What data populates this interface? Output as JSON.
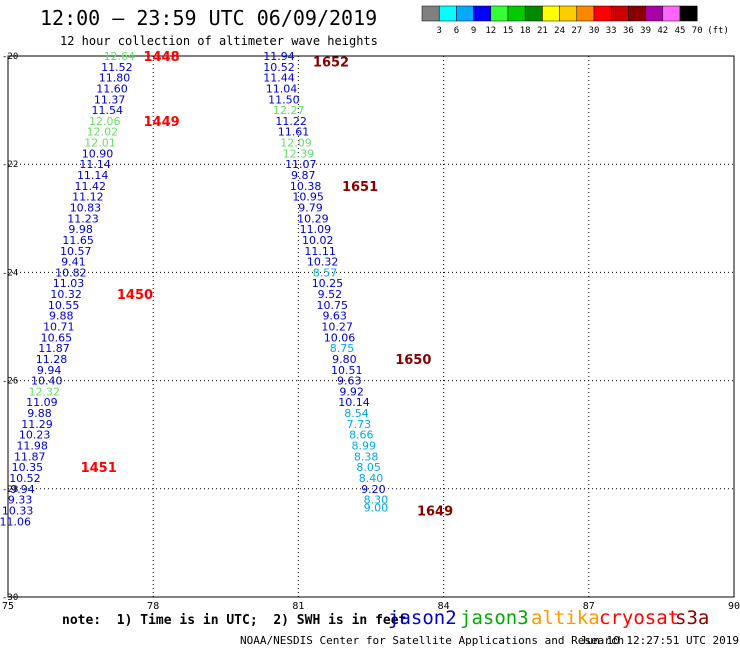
{
  "title": "12:00 – 23:59 UTC 06/09/2019",
  "subtitle": "12 hour collection of altimeter wave heights",
  "note": "note:  1) Time is in UTC;  2) SWH is in feet",
  "footer_left": "NOAA/NESDIS Center for Satellite Applications and Research",
  "footer_right": "Jun 10 12:27:51 UTC 2019",
  "satellites": [
    {
      "name": "jason2",
      "color": "#0000cc"
    },
    {
      "name": "jason3",
      "color": "#00aa00"
    },
    {
      "name": "altika",
      "color": "#ff9900"
    },
    {
      "name": "cryosat",
      "color": "#ff0000"
    },
    {
      "name": "s3a",
      "color": "#880000"
    }
  ],
  "colorbar": {
    "colors": [
      "#808080",
      "#00ffff",
      "#00aaff",
      "#0000ff",
      "#33ff33",
      "#00cc00",
      "#008800",
      "#ffff00",
      "#ffcc00",
      "#ff8800",
      "#ff0000",
      "#cc0000",
      "#880000",
      "#aa00aa",
      "#ff66ff",
      "#000000"
    ],
    "labels": [
      "3",
      "6",
      "9",
      "12",
      "15",
      "18",
      "21",
      "24",
      "27",
      "30",
      "33",
      "36",
      "39",
      "42",
      "45",
      "70"
    ],
    "unit": "(ft)"
  },
  "chart_data": {
    "type": "scatter",
    "xlim": [
      75,
      90
    ],
    "ylim": [
      -30,
      -20
    ],
    "xticks": [
      "75",
      "78",
      "81",
      "84",
      "87",
      "90"
    ],
    "yticks": [
      "-20",
      "-22",
      "-24",
      "-26",
      "-28",
      "-30"
    ],
    "grid": true,
    "series": [
      {
        "points": [
          {
            "x": 77.3,
            "y": -20.0,
            "label": "12.64",
            "color": "#66dd66"
          },
          {
            "x": 77.25,
            "y": -20.2,
            "label": "11.52",
            "color": "#0000cc"
          },
          {
            "x": 77.2,
            "y": -20.4,
            "label": "11.80",
            "color": "#0000cc"
          },
          {
            "x": 77.15,
            "y": -20.6,
            "label": "11.60",
            "color": "#0000cc"
          },
          {
            "x": 77.1,
            "y": -20.8,
            "label": "11.37",
            "color": "#0000cc"
          },
          {
            "x": 77.05,
            "y": -21.0,
            "label": "11.54",
            "color": "#0000cc"
          },
          {
            "x": 77.0,
            "y": -21.2,
            "label": "12.06",
            "color": "#66dd66"
          },
          {
            "x": 76.95,
            "y": -21.4,
            "label": "12.02",
            "color": "#66dd66"
          },
          {
            "x": 76.9,
            "y": -21.6,
            "label": "12.01",
            "color": "#66dd66"
          },
          {
            "x": 76.85,
            "y": -21.8,
            "label": "10.90",
            "color": "#0000cc"
          },
          {
            "x": 76.8,
            "y": -22.0,
            "label": "11.14",
            "color": "#0000cc"
          },
          {
            "x": 76.75,
            "y": -22.2,
            "label": "11.14",
            "color": "#0000cc"
          },
          {
            "x": 76.7,
            "y": -22.4,
            "label": "11.42",
            "color": "#0000cc"
          },
          {
            "x": 76.65,
            "y": -22.6,
            "label": "11.12",
            "color": "#0000cc"
          },
          {
            "x": 76.6,
            "y": -22.8,
            "label": "10.83",
            "color": "#0000cc"
          },
          {
            "x": 76.55,
            "y": -23.0,
            "label": "11.23",
            "color": "#0000cc"
          },
          {
            "x": 76.5,
            "y": -23.2,
            "label": "9.98",
            "color": "#0000cc"
          },
          {
            "x": 76.45,
            "y": -23.4,
            "label": "11.65",
            "color": "#0000cc"
          },
          {
            "x": 76.4,
            "y": -23.6,
            "label": "10.57",
            "color": "#0000cc"
          },
          {
            "x": 76.35,
            "y": -23.8,
            "label": "9.41",
            "color": "#0000cc"
          },
          {
            "x": 76.3,
            "y": -24.0,
            "label": "10.82",
            "color": "#0000cc"
          },
          {
            "x": 76.25,
            "y": -24.2,
            "label": "11.03",
            "color": "#0000cc"
          },
          {
            "x": 76.2,
            "y": -24.4,
            "label": "10.32",
            "color": "#0000cc"
          },
          {
            "x": 76.15,
            "y": -24.6,
            "label": "10.55",
            "color": "#0000cc"
          },
          {
            "x": 76.1,
            "y": -24.8,
            "label": "9.88",
            "color": "#0000cc"
          },
          {
            "x": 76.05,
            "y": -25.0,
            "label": "10.71",
            "color": "#0000cc"
          },
          {
            "x": 76.0,
            "y": -25.2,
            "label": "10.65",
            "color": "#0000cc"
          },
          {
            "x": 75.95,
            "y": -25.4,
            "label": "11.87",
            "color": "#0000cc"
          },
          {
            "x": 75.9,
            "y": -25.6,
            "label": "11.28",
            "color": "#0000cc"
          },
          {
            "x": 75.85,
            "y": -25.8,
            "label": "9.94",
            "color": "#0000cc"
          },
          {
            "x": 75.8,
            "y": -26.0,
            "label": "10.40",
            "color": "#0000cc"
          },
          {
            "x": 75.75,
            "y": -26.2,
            "label": "12.32",
            "color": "#66dd66"
          },
          {
            "x": 75.7,
            "y": -26.4,
            "label": "11.09",
            "color": "#0000cc"
          },
          {
            "x": 75.65,
            "y": -26.6,
            "label": "9.88",
            "color": "#0000cc"
          },
          {
            "x": 75.6,
            "y": -26.8,
            "label": "11.29",
            "color": "#0000cc"
          },
          {
            "x": 75.55,
            "y": -27.0,
            "label": "10.23",
            "color": "#0000cc"
          },
          {
            "x": 75.5,
            "y": -27.2,
            "label": "11.98",
            "color": "#0000cc"
          },
          {
            "x": 75.45,
            "y": -27.4,
            "label": "11.87",
            "color": "#0000cc"
          },
          {
            "x": 75.4,
            "y": -27.6,
            "label": "10.35",
            "color": "#0000cc"
          },
          {
            "x": 75.35,
            "y": -27.8,
            "label": "10.52",
            "color": "#0000cc"
          },
          {
            "x": 75.3,
            "y": -28.0,
            "label": "9.94",
            "color": "#0000cc"
          },
          {
            "x": 75.25,
            "y": -28.2,
            "label": "9.33",
            "color": "#0000cc"
          },
          {
            "x": 75.2,
            "y": -28.4,
            "label": "10.33",
            "color": "#0000cc"
          },
          {
            "x": 75.15,
            "y": -28.6,
            "label": "11.06",
            "color": "#0000cc"
          },
          {
            "x": 80.6,
            "y": -20.0,
            "label": "11.94",
            "color": "#0000cc"
          },
          {
            "x": 80.6,
            "y": -20.2,
            "label": "10.52",
            "color": "#0000cc"
          },
          {
            "x": 80.6,
            "y": -20.4,
            "label": "11.44",
            "color": "#0000cc"
          },
          {
            "x": 80.65,
            "y": -20.6,
            "label": "11.04",
            "color": "#0000cc"
          },
          {
            "x": 80.7,
            "y": -20.8,
            "label": "11.50",
            "color": "#0000cc"
          },
          {
            "x": 80.8,
            "y": -21.0,
            "label": "12.27",
            "color": "#66dd66"
          },
          {
            "x": 80.85,
            "y": -21.2,
            "label": "11.22",
            "color": "#0000cc"
          },
          {
            "x": 80.9,
            "y": -21.4,
            "label": "11.61",
            "color": "#0000cc"
          },
          {
            "x": 80.95,
            "y": -21.6,
            "label": "12.09",
            "color": "#66dd66"
          },
          {
            "x": 81.0,
            "y": -21.8,
            "label": "12.39",
            "color": "#66dd66"
          },
          {
            "x": 81.05,
            "y": -22.0,
            "label": "11.07",
            "color": "#0000cc"
          },
          {
            "x": 81.1,
            "y": -22.2,
            "label": "9.87",
            "color": "#0000cc"
          },
          {
            "x": 81.15,
            "y": -22.4,
            "label": "10.38",
            "color": "#0000cc"
          },
          {
            "x": 81.2,
            "y": -22.6,
            "label": "10.95",
            "color": "#0000cc"
          },
          {
            "x": 81.25,
            "y": -22.8,
            "label": "9.79",
            "color": "#0000cc"
          },
          {
            "x": 81.3,
            "y": -23.0,
            "label": "10.29",
            "color": "#0000cc"
          },
          {
            "x": 81.35,
            "y": -23.2,
            "label": "11.09",
            "color": "#0000cc"
          },
          {
            "x": 81.4,
            "y": -23.4,
            "label": "10.02",
            "color": "#0000cc"
          },
          {
            "x": 81.45,
            "y": -23.6,
            "label": "11.11",
            "color": "#0000cc"
          },
          {
            "x": 81.5,
            "y": -23.8,
            "label": "10.32",
            "color": "#0000cc"
          },
          {
            "x": 81.55,
            "y": -24.0,
            "label": "8.57",
            "color": "#00aadd"
          },
          {
            "x": 81.6,
            "y": -24.2,
            "label": "10.25",
            "color": "#0000cc"
          },
          {
            "x": 81.65,
            "y": -24.4,
            "label": "9.52",
            "color": "#0000cc"
          },
          {
            "x": 81.7,
            "y": -24.6,
            "label": "10.75",
            "color": "#0000cc"
          },
          {
            "x": 81.75,
            "y": -24.8,
            "label": "9.63",
            "color": "#0000cc"
          },
          {
            "x": 81.8,
            "y": -25.0,
            "label": "10.27",
            "color": "#0000cc"
          },
          {
            "x": 81.85,
            "y": -25.2,
            "label": "10.06",
            "color": "#0000cc"
          },
          {
            "x": 81.9,
            "y": -25.4,
            "label": "8.75",
            "color": "#00aadd"
          },
          {
            "x": 81.95,
            "y": -25.6,
            "label": "9.80",
            "color": "#0000cc"
          },
          {
            "x": 82.0,
            "y": -25.8,
            "label": "10.51",
            "color": "#0000cc"
          },
          {
            "x": 82.05,
            "y": -26.0,
            "label": "9.63",
            "color": "#0000cc"
          },
          {
            "x": 82.1,
            "y": -26.2,
            "label": "9.92",
            "color": "#0000cc"
          },
          {
            "x": 82.15,
            "y": -26.4,
            "label": "10.14",
            "color": "#0000cc"
          },
          {
            "x": 82.2,
            "y": -26.6,
            "label": "8.54",
            "color": "#00aadd"
          },
          {
            "x": 82.25,
            "y": -26.8,
            "label": "7.73",
            "color": "#00aadd"
          },
          {
            "x": 82.3,
            "y": -27.0,
            "label": "8.66",
            "color": "#00aadd"
          },
          {
            "x": 82.35,
            "y": -27.2,
            "label": "8.99",
            "color": "#00aadd"
          },
          {
            "x": 82.4,
            "y": -27.4,
            "label": "8.38",
            "color": "#00aadd"
          },
          {
            "x": 82.45,
            "y": -27.6,
            "label": "8.05",
            "color": "#00aadd"
          },
          {
            "x": 82.5,
            "y": -27.8,
            "label": "8.40",
            "color": "#00aadd"
          },
          {
            "x": 82.55,
            "y": -28.0,
            "label": "9.20",
            "color": "#0000cc"
          },
          {
            "x": 82.6,
            "y": -28.2,
            "label": "8.30",
            "color": "#00aadd"
          },
          {
            "x": 82.6,
            "y": -28.35,
            "label": "9.00",
            "color": "#00aadd"
          }
        ]
      }
    ],
    "time_labels": [
      {
        "label": "1448",
        "x": 77.8,
        "y": -20.0,
        "color": "#ff0000"
      },
      {
        "label": "1449",
        "x": 77.8,
        "y": -21.2,
        "color": "#ff0000"
      },
      {
        "label": "1450",
        "x": 77.25,
        "y": -24.4,
        "color": "#ff0000"
      },
      {
        "label": "1451",
        "x": 76.5,
        "y": -27.6,
        "color": "#ff0000"
      },
      {
        "label": "1652",
        "x": 81.3,
        "y": -20.1,
        "color": "#880000"
      },
      {
        "label": "1651",
        "x": 81.9,
        "y": -22.4,
        "color": "#880000"
      },
      {
        "label": "1650",
        "x": 83.0,
        "y": -25.6,
        "color": "#880000"
      },
      {
        "label": "1649",
        "x": 83.45,
        "y": -28.4,
        "color": "#880000"
      }
    ]
  }
}
